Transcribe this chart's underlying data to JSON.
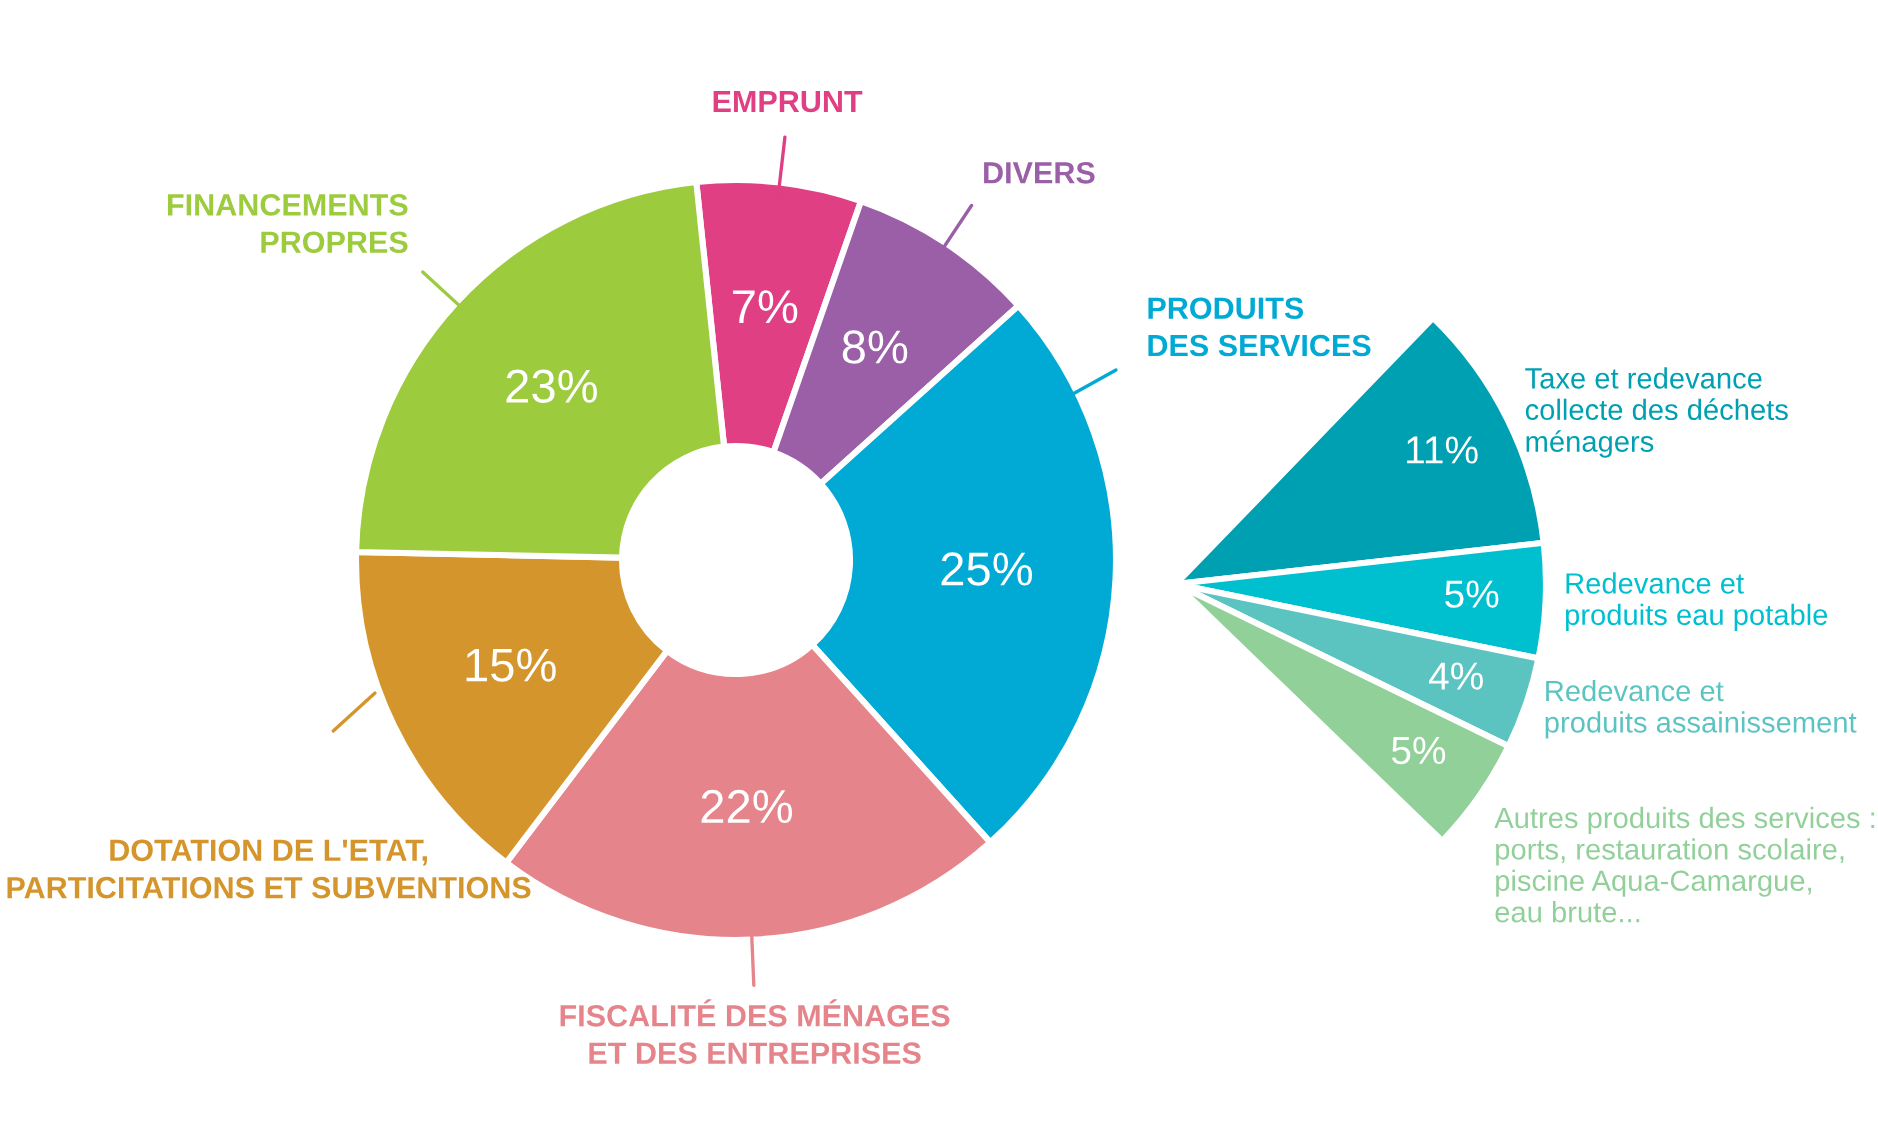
{
  "chart_data": [
    {
      "type": "donut",
      "categories": [
        "EMPRUNT",
        "DIVERS",
        "PRODUITS\nDES SERVICES",
        "FISCALITÉ DES MÉNAGES\nET DES ENTREPRISES",
        "DOTATION DE L'ETAT,\nPARTICITATIONS ET SUBVENTIONS",
        "FINANCEMENTS\nPROPRES"
      ],
      "values": [
        7,
        8,
        25,
        22,
        15,
        23
      ],
      "colors": [
        "#e03f84",
        "#9b5fa8",
        "#00aad4",
        "#e5858b",
        "#d4962c",
        "#9ccb3d"
      ],
      "value_labels": [
        "7%",
        "8%",
        "25%",
        "22%",
        "15%",
        "23%"
      ]
    },
    {
      "type": "pie",
      "categories": [
        "Taxe et redevance\ncollecte des déchets\nménagers",
        "Redevance et\nproduits eau potable",
        "Redevance et\nproduits assainissement",
        "Autres produits des services :\nports, restauration scolaire,\npiscine Aqua-Camargue,\neau brute..."
      ],
      "values": [
        11,
        5,
        4,
        5
      ],
      "colors": [
        "#00a0b3",
        "#00c0d0",
        "#5cc4c0",
        "#92d09a"
      ],
      "value_labels": [
        "11%",
        "5%",
        "4%",
        "5%"
      ]
    }
  ]
}
